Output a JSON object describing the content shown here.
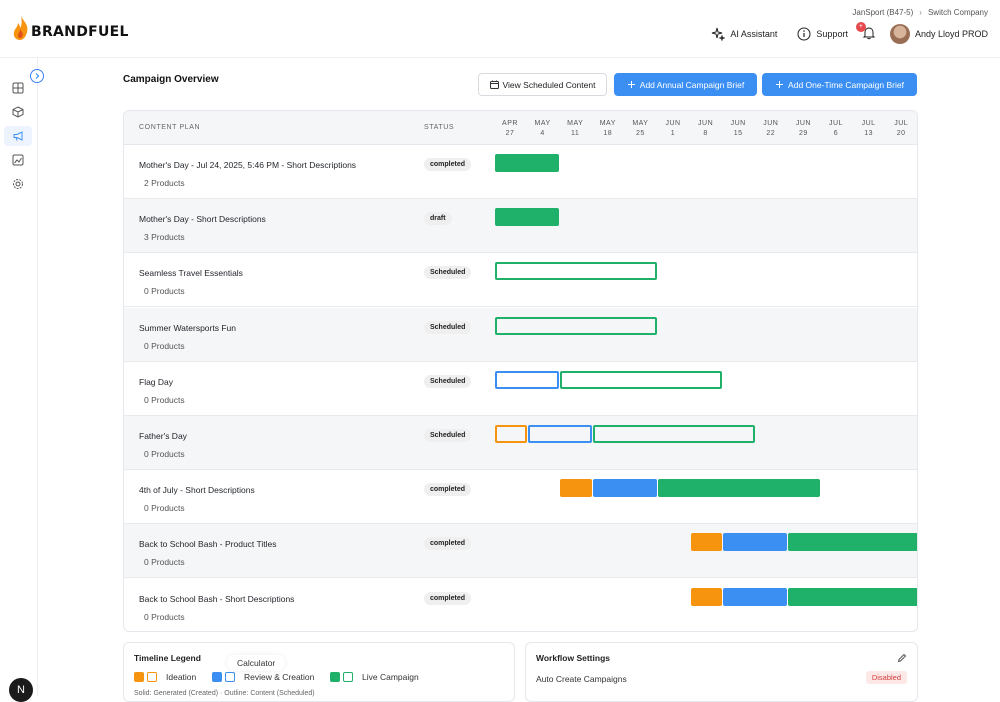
{
  "brand": {
    "name": "BRANDFUEL",
    "accent": "#f7940f"
  },
  "header": {
    "company": "JanSport (B47-5)",
    "switch_company": "Switch Company",
    "ai_assistant": "AI Assistant",
    "support": "Support",
    "notifications_count": "+",
    "user_name": "Andy Lloyd PROD"
  },
  "sidebar": {
    "items": [
      "grid-icon",
      "box-icon",
      "megaphone-icon",
      "image-chart-icon",
      "gear-icon"
    ],
    "active": 2,
    "footer_badge": "N"
  },
  "page": {
    "title": "Campaign Overview",
    "view_scheduled": "View Scheduled Content",
    "add_annual": "Add Annual Campaign Brief",
    "add_one_time": "Add One-Time Campaign Brief"
  },
  "timeline": {
    "col_plan": "CONTENT PLAN",
    "col_status": "STATUS",
    "months": [
      {
        "m": "APR",
        "d": "27"
      },
      {
        "m": "MAY",
        "d": "4"
      },
      {
        "m": "MAY",
        "d": "11"
      },
      {
        "m": "MAY",
        "d": "18"
      },
      {
        "m": "MAY",
        "d": "25"
      },
      {
        "m": "JUN",
        "d": "1"
      },
      {
        "m": "JUN",
        "d": "8"
      },
      {
        "m": "JUN",
        "d": "15"
      },
      {
        "m": "JUN",
        "d": "22"
      },
      {
        "m": "JUN",
        "d": "29"
      },
      {
        "m": "JUL",
        "d": "6"
      },
      {
        "m": "JUL",
        "d": "13"
      },
      {
        "m": "JUL",
        "d": "20"
      }
    ],
    "rows": [
      {
        "name": "Mother's Day - Jul 24, 2025, 5:46 PM - Short Descriptions",
        "count": "2 Products",
        "status": "completed",
        "bars": [
          {
            "phase": "live",
            "style": "solid",
            "start_week": 0,
            "end_week": 2
          }
        ]
      },
      {
        "name": "Mother's Day - Short Descriptions",
        "count": "3 Products",
        "status": "draft",
        "bars": [
          {
            "phase": "live",
            "style": "solid",
            "start_week": 0,
            "end_week": 2
          }
        ]
      },
      {
        "name": "Seamless Travel Essentials",
        "count": "0 Products",
        "status": "Scheduled",
        "bars": [
          {
            "phase": "live",
            "style": "outline",
            "start_week": 0,
            "end_week": 5
          }
        ]
      },
      {
        "name": "Summer Watersports Fun",
        "count": "0 Products",
        "status": "Scheduled",
        "bars": [
          {
            "phase": "live",
            "style": "outline",
            "start_week": 0,
            "end_week": 5
          }
        ]
      },
      {
        "name": "Flag Day",
        "count": "0 Products",
        "status": "Scheduled",
        "bars": [
          {
            "phase": "review",
            "style": "outline",
            "start_week": 0,
            "end_week": 2
          },
          {
            "phase": "live",
            "style": "outline",
            "start_week": 2,
            "end_week": 7
          }
        ]
      },
      {
        "name": "Father's Day",
        "count": "0 Products",
        "status": "Scheduled",
        "bars": [
          {
            "phase": "ideation",
            "style": "outline",
            "start_week": 0,
            "end_week": 1
          },
          {
            "phase": "review",
            "style": "outline",
            "start_week": 1,
            "end_week": 3
          },
          {
            "phase": "live",
            "style": "outline",
            "start_week": 3,
            "end_week": 8
          }
        ]
      },
      {
        "name": "4th of July - Short Descriptions",
        "count": "0 Products",
        "status": "completed",
        "bars": [
          {
            "phase": "ideation",
            "style": "solid",
            "start_week": 2,
            "end_week": 3
          },
          {
            "phase": "review",
            "style": "solid",
            "start_week": 3,
            "end_week": 5
          },
          {
            "phase": "live",
            "style": "solid",
            "start_week": 5,
            "end_week": 10
          }
        ]
      },
      {
        "name": "Back to School Bash - Product Titles",
        "count": "0 Products",
        "status": "completed",
        "bars": [
          {
            "phase": "ideation",
            "style": "solid",
            "start_week": 6,
            "end_week": 7
          },
          {
            "phase": "review",
            "style": "solid",
            "start_week": 7,
            "end_week": 9
          },
          {
            "phase": "live",
            "style": "solid",
            "start_week": 9,
            "end_week": 13
          }
        ]
      },
      {
        "name": "Back to School Bash - Short Descriptions",
        "count": "0 Products",
        "status": "completed",
        "bars": [
          {
            "phase": "ideation",
            "style": "solid",
            "start_week": 6,
            "end_week": 7
          },
          {
            "phase": "review",
            "style": "solid",
            "start_week": 7,
            "end_week": 9
          },
          {
            "phase": "live",
            "style": "solid",
            "start_week": 9,
            "end_week": 13
          }
        ]
      }
    ],
    "phase_colors": {
      "ideation": "#f7940f",
      "review": "#3b8ff3",
      "live": "#1fb06a"
    }
  },
  "legend": {
    "title": "Timeline Legend",
    "items": [
      {
        "label": "Ideation",
        "color": "#f7940f"
      },
      {
        "label": "Review & Creation",
        "color": "#3b8ff3"
      },
      {
        "label": "Live Campaign",
        "color": "#1fb06a"
      }
    ],
    "note": "Solid: Generated (Created) · Outline: Content (Scheduled)",
    "tooltip": "Calculator"
  },
  "workflow": {
    "title": "Workflow Settings",
    "auto_create_label": "Auto Create Campaigns",
    "auto_create_value": "Disabled"
  }
}
